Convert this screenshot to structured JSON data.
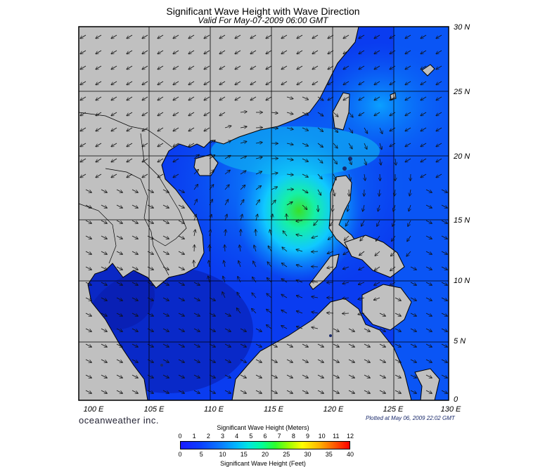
{
  "title": "Significant Wave Height with Wave Direction",
  "subtitle": "Valid For May-07-2009 06:00 GMT",
  "lat_labels": [
    "30 N",
    "25 N",
    "20 N",
    "15 N",
    "10 N",
    "5 N",
    "0"
  ],
  "lon_labels": [
    "100 E",
    "105 E",
    "110 E",
    "115 E",
    "120 E",
    "125 E",
    "130 E"
  ],
  "brand": "oceanweather inc.",
  "plotted": "Plotted at May 06, 2009 22:02 GMT",
  "colorbar": {
    "title_meters": "Significant Wave Height (Meters)",
    "title_feet": "Significant Wave Height (Feet)",
    "meter_ticks": [
      "0",
      "1",
      "2",
      "3",
      "4",
      "5",
      "6",
      "7",
      "8",
      "9",
      "10",
      "11",
      "12"
    ],
    "feet_ticks": [
      "0",
      "5",
      "10",
      "15",
      "20",
      "25",
      "30",
      "35",
      "40"
    ]
  },
  "colors": {
    "land": "#c0c0c0",
    "ocean_low": "#0a3cf0",
    "ocean_mid": "#0a8cff",
    "peak": "#2ddc2d",
    "grid": "#000000"
  },
  "map_extent": {
    "lon": [
      99,
      130
    ],
    "lat": [
      0,
      30
    ]
  }
}
